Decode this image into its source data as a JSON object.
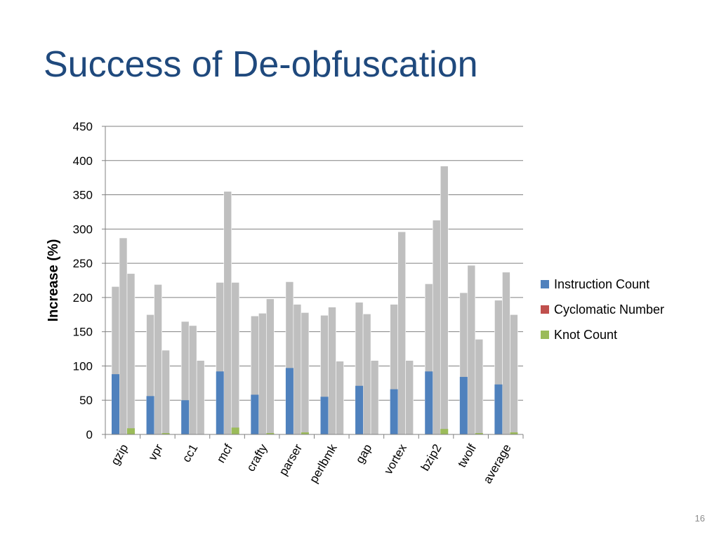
{
  "slide": {
    "title": "Success of De-obfuscation",
    "number": "16"
  },
  "colors": {
    "title": "#1f497d",
    "instruction_count": "#4f81bd",
    "cyclomatic_number": "#c0504d",
    "knot_count": "#9bbb59",
    "background_bars": "#bfbfbf",
    "gridline": "#808080"
  },
  "chart_data": {
    "type": "bar",
    "ylabel": "Increase (%)",
    "xlabel": "",
    "ylim": [
      0,
      450
    ],
    "yticks": [
      0,
      50,
      100,
      150,
      200,
      250,
      300,
      350,
      400,
      450
    ],
    "grid": true,
    "legend_position": "right",
    "categories": [
      "gzip",
      "vpr",
      "cc1",
      "mcf",
      "crafty",
      "parser",
      "perlbmk",
      "gap",
      "vortex",
      "bzip2",
      "twolf",
      "average"
    ],
    "background_series": {
      "values": [
        [
          216,
          287,
          235
        ],
        [
          175,
          219,
          123
        ],
        [
          165,
          159,
          108
        ],
        [
          222,
          355,
          222
        ],
        [
          173,
          177,
          198
        ],
        [
          223,
          190,
          178
        ],
        [
          174,
          186,
          107
        ],
        [
          193,
          176,
          108
        ],
        [
          190,
          296,
          108
        ],
        [
          220,
          313,
          392
        ],
        [
          207,
          247,
          139
        ],
        [
          196,
          237,
          175
        ]
      ]
    },
    "series": [
      {
        "name": "Instruction Count",
        "values": [
          88,
          56,
          50,
          92,
          58,
          97,
          55,
          71,
          66,
          92,
          84,
          73
        ]
      },
      {
        "name": "Cyclomatic Number",
        "values": [
          0,
          0,
          0,
          0,
          0,
          0,
          0,
          0,
          0,
          0,
          0,
          0
        ]
      },
      {
        "name": "Knot Count",
        "values": [
          9,
          2,
          0,
          10,
          2,
          3,
          0,
          0,
          0,
          8,
          2,
          3
        ]
      }
    ]
  }
}
